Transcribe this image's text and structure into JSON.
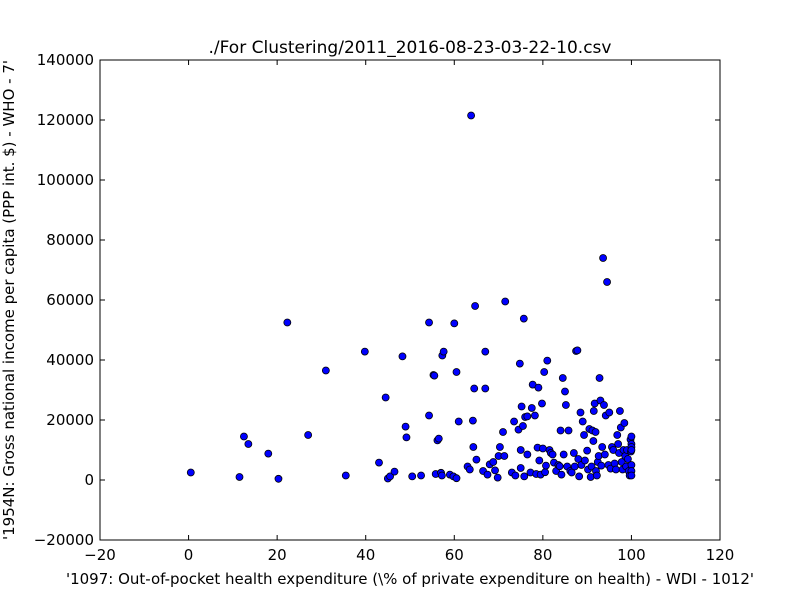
{
  "chart_data": {
    "type": "scatter",
    "title": "./For Clustering/2011_2016-08-23-03-22-10.csv",
    "xlabel": "'1097: Out-of-pocket health expenditure  (\\% of private expenditure on health) - WDI - 1012'",
    "ylabel": "'1954N: Gross national income per capita (PPP int. $) - WHO - 7'",
    "xlim": [
      -20,
      120
    ],
    "ylim": [
      -20000,
      140000
    ],
    "xticks": [
      -20,
      0,
      20,
      40,
      60,
      80,
      100,
      120
    ],
    "yticks": [
      -20000,
      0,
      20000,
      40000,
      60000,
      80000,
      100000,
      120000,
      140000
    ],
    "xtick_labels": [
      "−20",
      "0",
      "20",
      "40",
      "60",
      "80",
      "100",
      "120"
    ],
    "ytick_labels": [
      "−20000",
      "0",
      "20000",
      "40000",
      "60000",
      "80000",
      "100000",
      "120000",
      "140000"
    ],
    "grid": false,
    "marker_color": "#0000ff",
    "points": [
      [
        0.5,
        2500
      ],
      [
        11.5,
        1000
      ],
      [
        12.5,
        14500
      ],
      [
        13.5,
        12000
      ],
      [
        18,
        8800
      ],
      [
        20.3,
        400
      ],
      [
        22.3,
        52500
      ],
      [
        27,
        15000
      ],
      [
        31,
        36500
      ],
      [
        35.5,
        1500
      ],
      [
        39.8,
        42800
      ],
      [
        43,
        5800
      ],
      [
        44.5,
        27500
      ],
      [
        45,
        500
      ],
      [
        45.5,
        1200
      ],
      [
        46.5,
        2800
      ],
      [
        48.3,
        41200
      ],
      [
        49,
        17800
      ],
      [
        49.2,
        14200
      ],
      [
        50.5,
        1200
      ],
      [
        52.5,
        1500
      ],
      [
        54.3,
        52500
      ],
      [
        54.3,
        21500
      ],
      [
        55.3,
        35000
      ],
      [
        55.5,
        34800
      ],
      [
        55.8,
        2000
      ],
      [
        56.2,
        13200
      ],
      [
        56.5,
        13800
      ],
      [
        57,
        2400
      ],
      [
        57.2,
        1500
      ],
      [
        57.3,
        41500
      ],
      [
        57.6,
        42800
      ],
      [
        59,
        1800
      ],
      [
        59.8,
        1200
      ],
      [
        60,
        52200
      ],
      [
        60.5,
        36000
      ],
      [
        60.5,
        600
      ],
      [
        61,
        19500
      ],
      [
        63,
        4500
      ],
      [
        63.5,
        3500
      ],
      [
        63.8,
        121500
      ],
      [
        64.2,
        19800
      ],
      [
        64.3,
        11000
      ],
      [
        64.5,
        30500
      ],
      [
        64.7,
        58000
      ],
      [
        65,
        6800
      ],
      [
        66.5,
        3000
      ],
      [
        67,
        42800
      ],
      [
        67,
        30500
      ],
      [
        67.5,
        1800
      ],
      [
        68,
        5200
      ],
      [
        68.8,
        6000
      ],
      [
        69.2,
        3200
      ],
      [
        69.8,
        800
      ],
      [
        70,
        8000
      ],
      [
        70.3,
        11000
      ],
      [
        71,
        16000
      ],
      [
        71.3,
        8000
      ],
      [
        71.5,
        59500
      ],
      [
        73,
        2500
      ],
      [
        73.5,
        19500
      ],
      [
        73.8,
        1500
      ],
      [
        74.5,
        16800
      ],
      [
        74.8,
        38800
      ],
      [
        75,
        10000
      ],
      [
        75,
        4000
      ],
      [
        75.2,
        24500
      ],
      [
        75.5,
        18000
      ],
      [
        75.7,
        53800
      ],
      [
        75.8,
        1200
      ],
      [
        76,
        21000
      ],
      [
        76.5,
        21200
      ],
      [
        76.5,
        8500
      ],
      [
        77.2,
        2500
      ],
      [
        77.5,
        24000
      ],
      [
        77.7,
        31800
      ],
      [
        78.2,
        21500
      ],
      [
        78.5,
        2000
      ],
      [
        78.8,
        10800
      ],
      [
        79,
        30800
      ],
      [
        79.2,
        6500
      ],
      [
        79.5,
        1800
      ],
      [
        79.8,
        25500
      ],
      [
        80,
        10500
      ],
      [
        80.3,
        36000
      ],
      [
        80.5,
        2600
      ],
      [
        80.7,
        4800
      ],
      [
        81,
        39800
      ],
      [
        81.5,
        10000
      ],
      [
        81.8,
        9000
      ],
      [
        82.2,
        8500
      ],
      [
        82.5,
        5800
      ],
      [
        83,
        3000
      ],
      [
        83.5,
        5000
      ],
      [
        83.8,
        4600
      ],
      [
        84,
        16500
      ],
      [
        84.2,
        1800
      ],
      [
        84.5,
        34000
      ],
      [
        84.7,
        8500
      ],
      [
        85,
        29500
      ],
      [
        85.2,
        25000
      ],
      [
        85.5,
        4500
      ],
      [
        85.8,
        16500
      ],
      [
        86.2,
        3000
      ],
      [
        86.5,
        2500
      ],
      [
        87,
        9000
      ],
      [
        87.2,
        4500
      ],
      [
        87.5,
        43000
      ],
      [
        87.8,
        43200
      ],
      [
        88,
        7000
      ],
      [
        88.2,
        1200
      ],
      [
        88.5,
        22500
      ],
      [
        88.7,
        5000
      ],
      [
        89,
        19500
      ],
      [
        89.3,
        15000
      ],
      [
        89.5,
        6500
      ],
      [
        90,
        9800
      ],
      [
        90.2,
        3500
      ],
      [
        90.5,
        17000
      ],
      [
        90.8,
        1000
      ],
      [
        91,
        4500
      ],
      [
        91.2,
        16500
      ],
      [
        91.4,
        13000
      ],
      [
        91.5,
        23000
      ],
      [
        91.7,
        25500
      ],
      [
        91.9,
        16000
      ],
      [
        92,
        3000
      ],
      [
        92.2,
        1500
      ],
      [
        92.4,
        6000
      ],
      [
        92.6,
        8000
      ],
      [
        92.8,
        34000
      ],
      [
        93,
        26500
      ],
      [
        93.2,
        4800
      ],
      [
        93.4,
        11000
      ],
      [
        93.6,
        74000
      ],
      [
        93.8,
        25000
      ],
      [
        94,
        8500
      ],
      [
        94.2,
        21500
      ],
      [
        94.5,
        66000
      ],
      [
        94.8,
        5000
      ],
      [
        95,
        22500
      ],
      [
        95.3,
        3800
      ],
      [
        95.6,
        11000
      ],
      [
        95.9,
        10000
      ],
      [
        96.2,
        5500
      ],
      [
        96.5,
        3500
      ],
      [
        96.8,
        15000
      ],
      [
        97,
        12000
      ],
      [
        97.2,
        9000
      ],
      [
        97.4,
        23000
      ],
      [
        97.6,
        17500
      ],
      [
        97.8,
        6000
      ],
      [
        98,
        3500
      ],
      [
        98.2,
        10000
      ],
      [
        98.4,
        19000
      ],
      [
        98.6,
        8000
      ],
      [
        98.8,
        4500
      ],
      [
        99,
        10000
      ],
      [
        99.2,
        7000
      ],
      [
        99.4,
        3000
      ],
      [
        99.6,
        1500
      ],
      [
        99.8,
        13500
      ],
      [
        99.9,
        9500
      ],
      [
        100,
        14500
      ],
      [
        100,
        12000
      ],
      [
        100,
        11000
      ],
      [
        100,
        10000
      ],
      [
        100,
        5000
      ],
      [
        100,
        3000
      ],
      [
        100,
        1500
      ]
    ]
  }
}
